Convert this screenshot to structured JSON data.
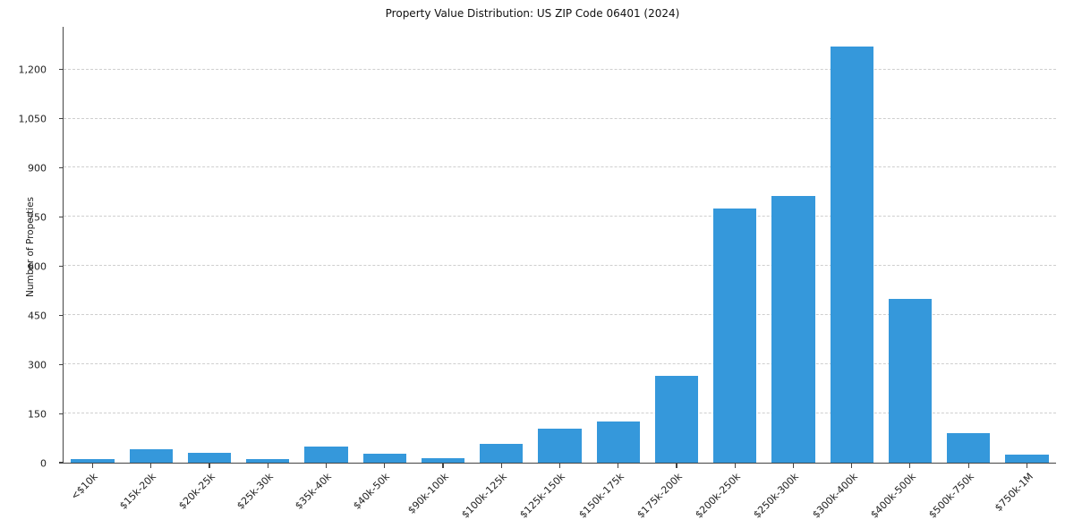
{
  "chart_data": {
    "type": "bar",
    "title": "Property Value Distribution: US ZIP Code 06401 (2024)",
    "xlabel": "",
    "ylabel": "Number of Properties",
    "categories": [
      "<$10k",
      "$15k-20k",
      "$20k-25k",
      "$25k-30k",
      "$35k-40k",
      "$40k-50k",
      "$90k-100k",
      "$100k-125k",
      "$125k-150k",
      "$150k-175k",
      "$175k-200k",
      "$200k-250k",
      "$250k-300k",
      "$300k-400k",
      "$400k-500k",
      "$500k-750k",
      "$750k-1M"
    ],
    "values": [
      10,
      40,
      30,
      12,
      48,
      28,
      15,
      57,
      105,
      125,
      265,
      775,
      815,
      1270,
      500,
      90,
      25
    ],
    "ylim": [
      0,
      1330
    ],
    "yticks": [
      0,
      150,
      300,
      450,
      600,
      750,
      900,
      1050,
      1200
    ],
    "ytick_labels": [
      "0",
      "150",
      "300",
      "450",
      "600",
      "750",
      "900",
      "1,050",
      "1,200"
    ],
    "grid": "horizontal-dashed",
    "legend": "none",
    "bar_color": "#3598db"
  }
}
